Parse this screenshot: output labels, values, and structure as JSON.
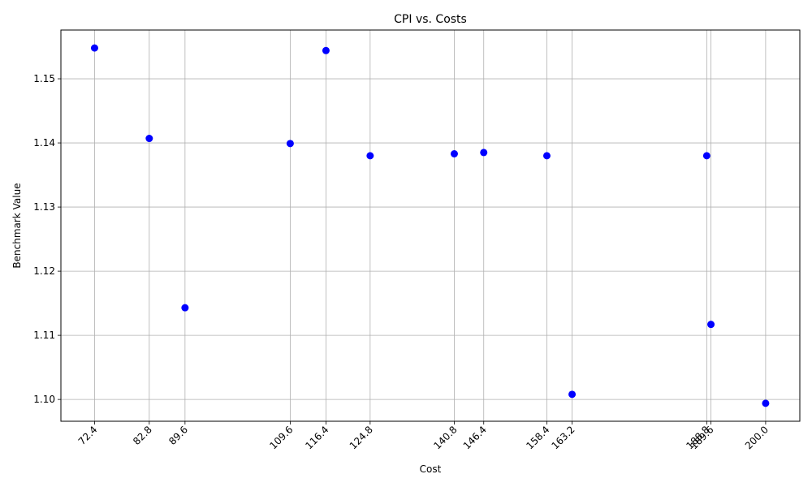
{
  "chart_data": {
    "type": "scatter",
    "title": "CPI vs. Costs",
    "xlabel": "Cost",
    "ylabel": "Benchmark Value",
    "grid": true,
    "marker_color": "#0000ff",
    "x_ticks": [
      "72.4",
      "82.8",
      "89.6",
      "109.6",
      "116.4",
      "124.8",
      "140.8",
      "146.4",
      "158.4",
      "163.2",
      "188.8",
      "189.6",
      "200.0"
    ],
    "y_ticks": [
      "1.10",
      "1.11",
      "1.12",
      "1.13",
      "1.14",
      "1.15"
    ],
    "xlim": [
      66.0,
      206.5
    ],
    "ylim": [
      1.0966,
      1.1576
    ],
    "points": [
      {
        "x": 72.4,
        "y": 1.1548
      },
      {
        "x": 82.8,
        "y": 1.1407
      },
      {
        "x": 89.6,
        "y": 1.1143
      },
      {
        "x": 109.6,
        "y": 1.1399
      },
      {
        "x": 116.4,
        "y": 1.1544
      },
      {
        "x": 124.8,
        "y": 1.138
      },
      {
        "x": 140.8,
        "y": 1.1383
      },
      {
        "x": 146.4,
        "y": 1.1385
      },
      {
        "x": 158.4,
        "y": 1.138
      },
      {
        "x": 163.2,
        "y": 1.1008
      },
      {
        "x": 188.8,
        "y": 1.138
      },
      {
        "x": 189.6,
        "y": 1.1117
      },
      {
        "x": 200.0,
        "y": 1.0994
      }
    ]
  }
}
